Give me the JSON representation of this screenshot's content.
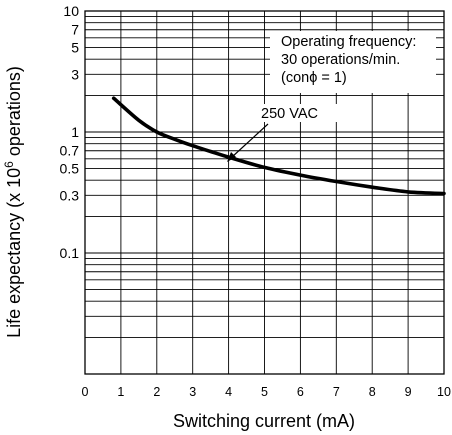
{
  "chart_data": {
    "type": "line",
    "xlabel": "Switching current (mA)",
    "ylabel_main": "Life expectancy  (x 10",
    "ylabel_exp": "6",
    "ylabel_tail": " operations)",
    "xlim": [
      0,
      10
    ],
    "ylim": [
      0.01,
      10
    ],
    "y_scale": "log",
    "grid": true,
    "x_ticks": [
      "0",
      "1",
      "2",
      "3",
      "4",
      "5",
      "6",
      "7",
      "8",
      "9",
      "10"
    ],
    "y_ticks": [
      {
        "label": "10",
        "value": 10
      },
      {
        "label": "7",
        "value": 7
      },
      {
        "label": "5",
        "value": 5
      },
      {
        "label": "3",
        "value": 3
      },
      {
        "label": "1",
        "value": 1
      },
      {
        "label": "0.7",
        "value": 0.7
      },
      {
        "label": "0.5",
        "value": 0.5
      },
      {
        "label": "0.3",
        "value": 0.3
      },
      {
        "label": "0.1",
        "value": 0.1
      }
    ],
    "annotation_lines": [
      "Operating frequency:",
      "30 operations/min.",
      "(conϕ = 1)"
    ],
    "series": [
      {
        "name": "250 VAC",
        "x": [
          0.8,
          1.5,
          2,
          2.5,
          3,
          3.5,
          4,
          5,
          6,
          7,
          8,
          9,
          10
        ],
        "y": [
          1.9,
          1.25,
          1.0,
          0.87,
          0.77,
          0.69,
          0.62,
          0.51,
          0.44,
          0.39,
          0.35,
          0.32,
          0.31
        ]
      }
    ]
  }
}
